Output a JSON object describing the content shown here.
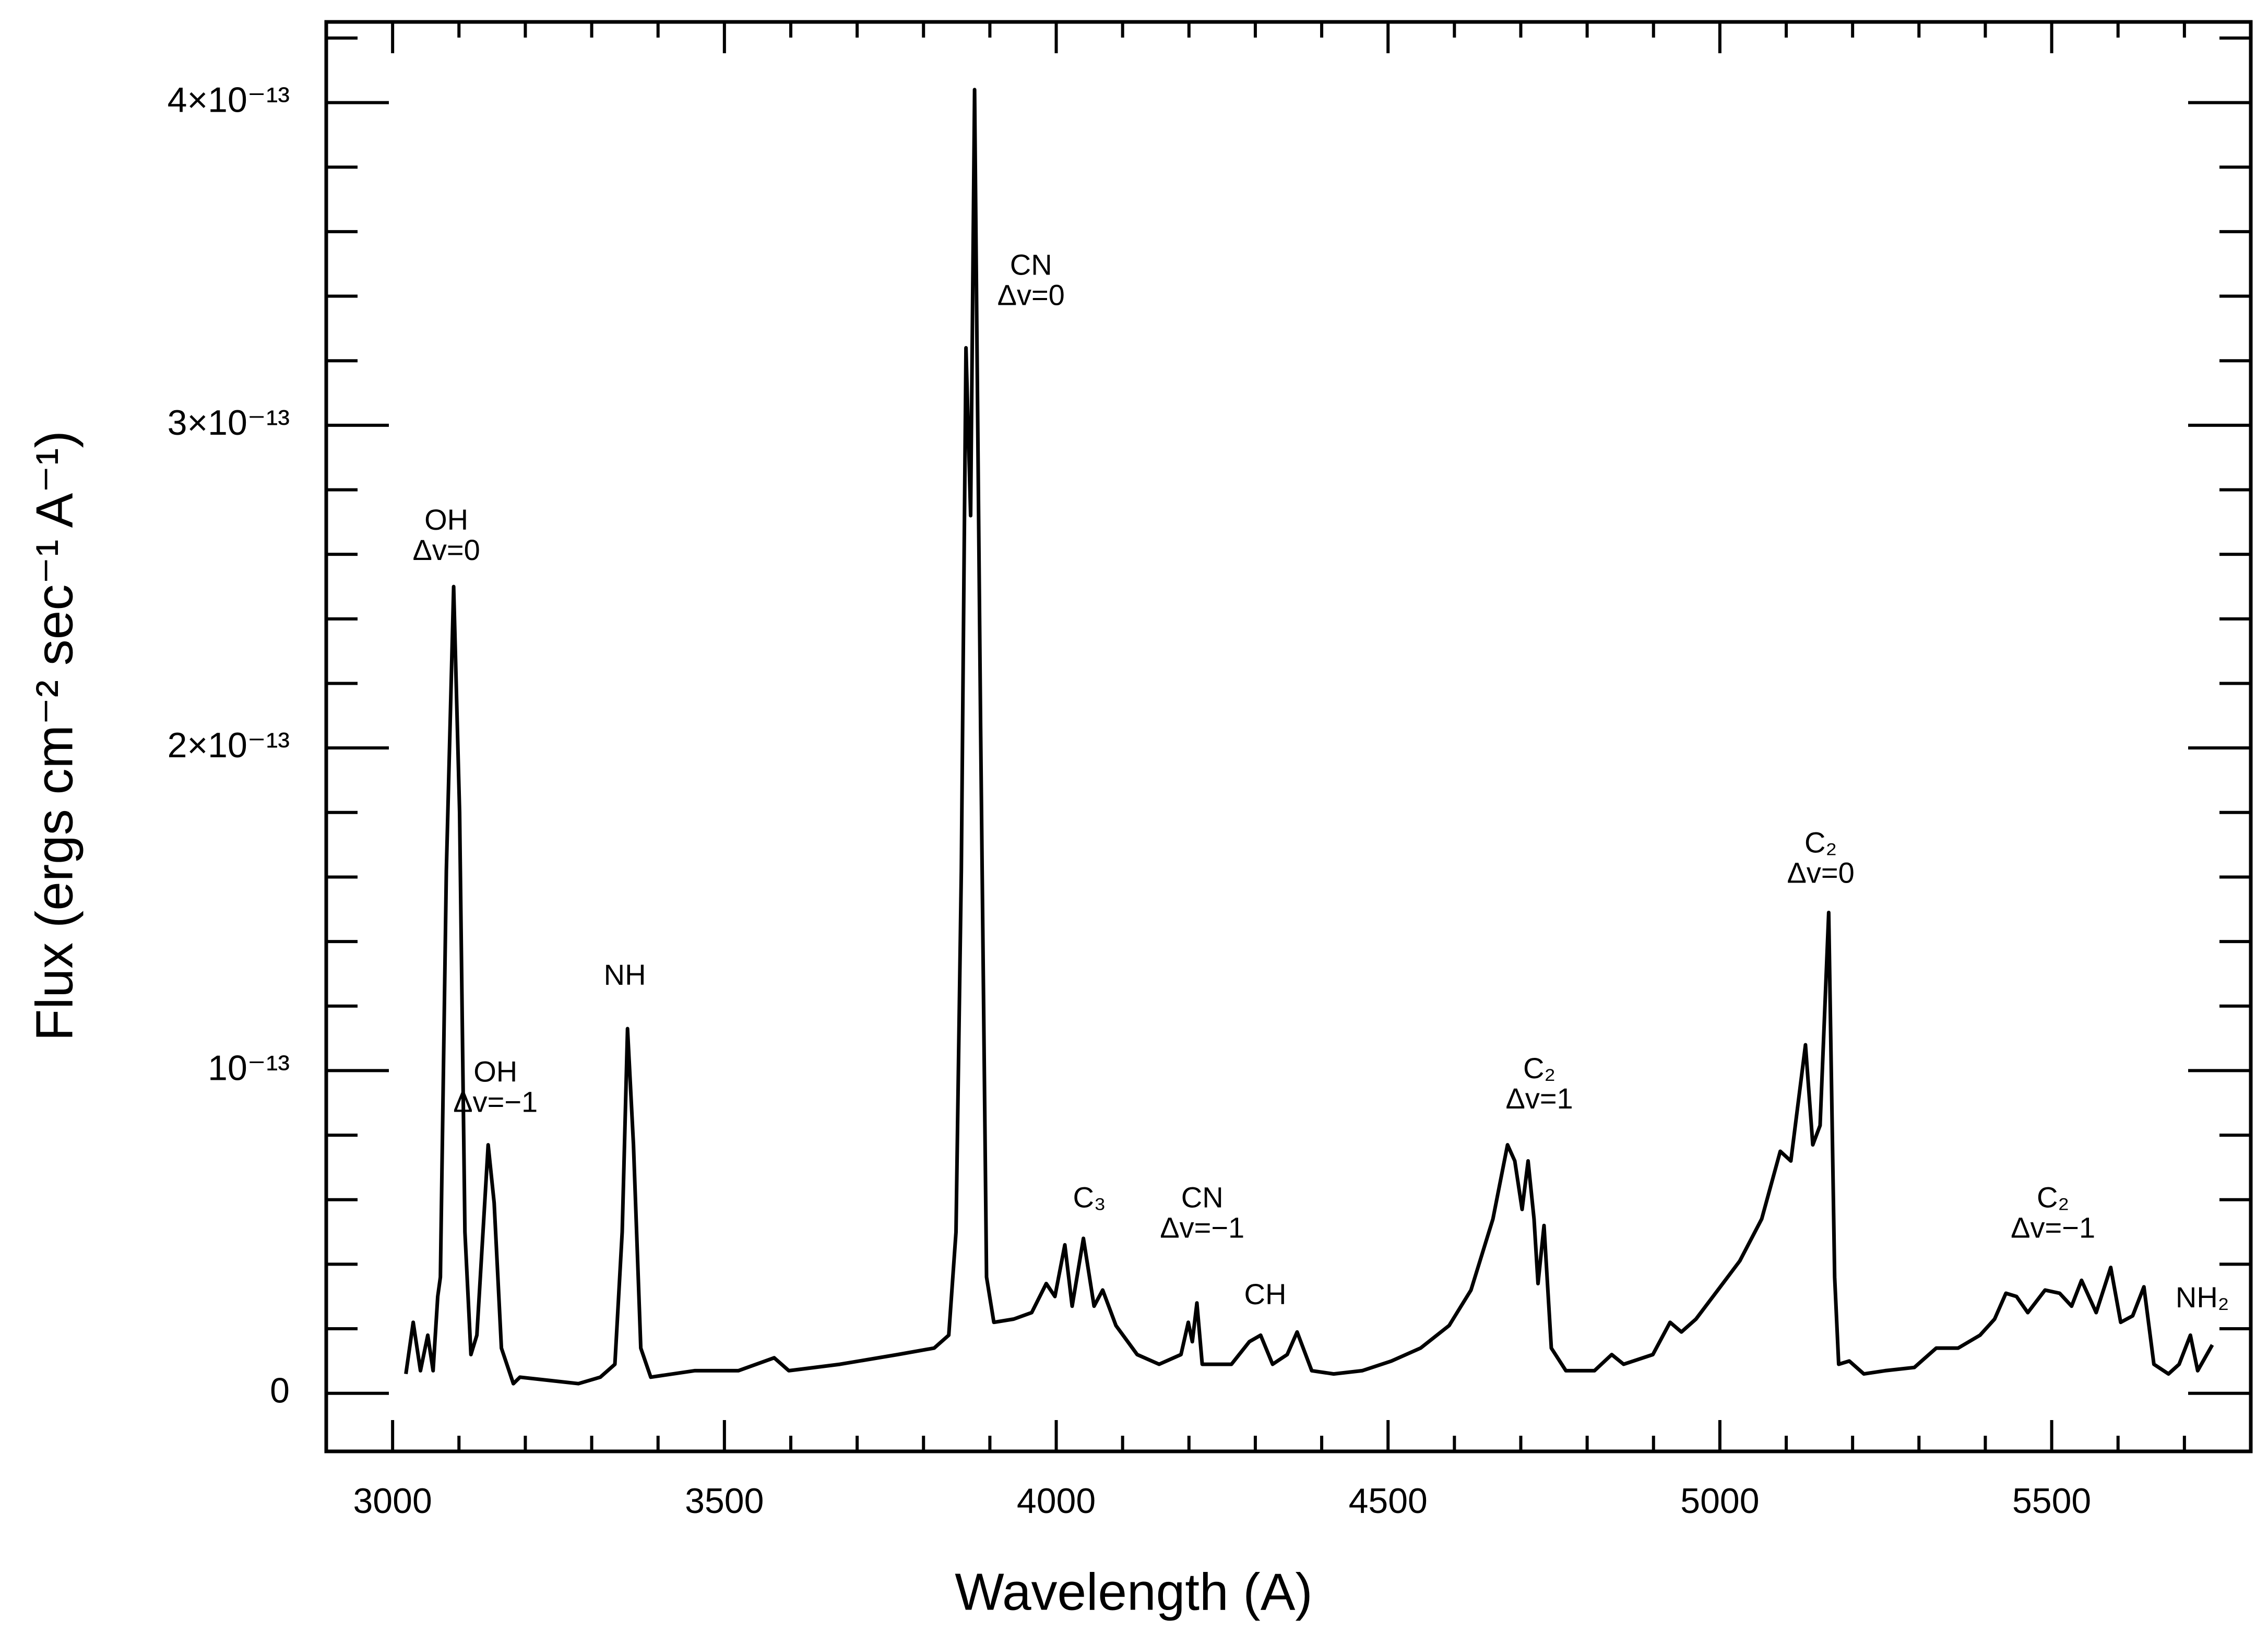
{
  "chart_data": {
    "type": "line",
    "xlabel": "Wavelength (A)",
    "ylabel": "Flux (ergs cm⁻² sec⁻¹ A⁻¹)",
    "color": "#000000",
    "x": [
      3020,
      3031,
      3042,
      3053,
      3061,
      3068,
      3072,
      3081,
      3092,
      3101,
      3109,
      3118,
      3127,
      3144,
      3153,
      3164,
      3182,
      3192,
      3236,
      3280,
      3313,
      3335,
      3346,
      3354,
      3363,
      3374,
      3389,
      3455,
      3521,
      3575,
      3597,
      3674,
      3761,
      3816,
      3838,
      3849,
      3857,
      3864,
      3871,
      3877,
      3886,
      3895,
      3906,
      3936,
      3963,
      3985,
      3998,
      4013,
      4024,
      4041,
      4057,
      4070,
      4090,
      4122,
      4155,
      4188,
      4199,
      4205,
      4212,
      4220,
      4264,
      4291,
      4308,
      4326,
      4348,
      4363,
      4385,
      4418,
      4461,
      4505,
      4549,
      4592,
      4625,
      4658,
      4680,
      4691,
      4702,
      4711,
      4720,
      4726,
      4735,
      4746,
      4768,
      4811,
      4837,
      4855,
      4899,
      4925,
      4942,
      4964,
      4997,
      5030,
      5063,
      5091,
      5107,
      5129,
      5140,
      5151,
      5164,
      5173,
      5179,
      5195,
      5217,
      5249,
      5293,
      5326,
      5359,
      5392,
      5414,
      5431,
      5447,
      5464,
      5490,
      5512,
      5530,
      5545,
      5567,
      5589,
      5604,
      5622,
      5639,
      5654,
      5676,
      5692,
      5709,
      5720,
      5742
    ],
    "values": [
      6e-15,
      2.2e-14,
      7e-15,
      1.8e-14,
      7e-15,
      3e-14,
      3.6e-14,
      1.62e-13,
      2.5e-13,
      1.8e-13,
      5e-14,
      1.2e-14,
      1.8e-14,
      7.7e-14,
      5.9e-14,
      1.4e-14,
      3e-15,
      5e-15,
      4e-15,
      3e-15,
      5e-15,
      9e-15,
      5e-14,
      1.13e-13,
      7.7e-14,
      1.4e-14,
      5e-15,
      7e-15,
      7e-15,
      1.1e-14,
      7e-15,
      9e-15,
      1.2e-14,
      1.4e-14,
      1.8e-14,
      5e-14,
      1.62e-13,
      3.24e-13,
      2.72e-13,
      4.04e-13,
      2.07e-13,
      3.6e-14,
      2.2e-14,
      2.3e-14,
      2.5e-14,
      3.4e-14,
      3e-14,
      4.6e-14,
      2.7e-14,
      4.8e-14,
      2.7e-14,
      3.2e-14,
      2.1e-14,
      1.2e-14,
      9e-15,
      1.2e-14,
      2.2e-14,
      1.6e-14,
      2.8e-14,
      9e-15,
      9e-15,
      1.6e-14,
      1.8e-14,
      9e-15,
      1.2e-14,
      1.9e-14,
      7e-15,
      6e-15,
      7e-15,
      1e-14,
      1.4e-14,
      2.1e-14,
      3.2e-14,
      5.4e-14,
      7.7e-14,
      7.2e-14,
      5.7e-14,
      7.2e-14,
      5.4e-14,
      3.4e-14,
      5.2e-14,
      1.4e-14,
      7e-15,
      7e-15,
      1.2e-14,
      9e-15,
      1.2e-14,
      2.2e-14,
      1.9e-14,
      2.3e-14,
      3.2e-14,
      4.1e-14,
      5.4e-14,
      7.5e-14,
      7.2e-14,
      1.08e-13,
      7.7e-14,
      8.3e-14,
      1.49e-13,
      3.6e-14,
      9e-15,
      1e-14,
      6e-15,
      7e-15,
      8e-15,
      1.4e-14,
      1.4e-14,
      1.8e-14,
      2.3e-14,
      3.1e-14,
      3e-14,
      2.5e-14,
      3.2e-14,
      3.1e-14,
      2.7e-14,
      3.5e-14,
      2.5e-14,
      3.9e-14,
      2.2e-14,
      2.4e-14,
      3.3e-14,
      9e-15,
      6e-15,
      9e-15,
      1.8e-14,
      7e-15,
      1.5e-14
    ],
    "xlim": [
      2900,
      5800
    ],
    "xticks": [
      3000,
      3500,
      4000,
      4500,
      5000,
      5500
    ],
    "xminorticks": [
      3100,
      3200,
      3300,
      3400,
      3600,
      3700,
      3800,
      3900,
      4100,
      4200,
      4300,
      4400,
      4600,
      4700,
      4800,
      4900,
      5100,
      5200,
      5300,
      5400,
      5600,
      5700
    ],
    "ylim": [
      -1.8e-14,
      4.25e-13
    ],
    "yticks": [
      0,
      {
        "value": 1e-13,
        "label": "10⁻¹³"
      },
      {
        "value": 2e-13,
        "label": "2×10⁻¹³"
      },
      {
        "value": 3e-13,
        "label": "3×10⁻¹³"
      },
      {
        "value": 4e-13,
        "label": "4×10⁻¹³"
      }
    ],
    "yminorticks": [
      2e-14,
      4e-14,
      6e-14,
      8e-14,
      1.2e-13,
      1.4e-13,
      1.6e-13,
      1.8e-13,
      2.2e-13,
      2.4e-13,
      2.6e-13,
      2.8e-13,
      3.2e-13,
      3.4e-13,
      3.6e-13,
      3.8e-13,
      4.2e-13
    ],
    "annotations": [
      {
        "lines": [
          "OH",
          "Δv=0"
        ],
        "x": 3081,
        "y": 2.7e-13
      },
      {
        "lines": [
          "OH",
          "Δv=−1"
        ],
        "x": 3155,
        "y": 9.9e-14
      },
      {
        "lines": [
          "NH"
        ],
        "x": 3350,
        "y": 1.29e-13
      },
      {
        "lines": [
          "CN",
          "Δv=0"
        ],
        "x": 3962,
        "y": 3.49e-13
      },
      {
        "lines": [
          "C₃"
        ],
        "x": 4050,
        "y": 6e-14
      },
      {
        "lines": [
          "CN",
          "Δv=−1"
        ],
        "x": 4220,
        "y": 6e-14
      },
      {
        "lines": [
          "CH"
        ],
        "x": 4315,
        "y": 3e-14
      },
      {
        "lines": [
          "C₂",
          "Δv=1"
        ],
        "x": 4728,
        "y": 1e-13
      },
      {
        "lines": [
          "C₂",
          "Δv=0"
        ],
        "x": 5152,
        "y": 1.7e-13
      },
      {
        "lines": [
          "C₂",
          "Δv=−1"
        ],
        "x": 5502,
        "y": 6e-14
      },
      {
        "lines": [
          "NH₂"
        ],
        "x": 5727,
        "y": 2.9e-14
      }
    ]
  }
}
